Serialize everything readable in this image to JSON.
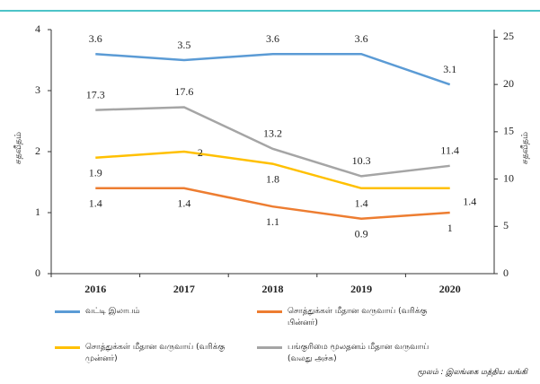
{
  "chart_data": {
    "type": "line",
    "categories": [
      "2016",
      "2017",
      "2018",
      "2019",
      "2020"
    ],
    "y_label": "சதவீதம்",
    "y2_label": "சதவீதம்",
    "ylim": [
      0,
      4
    ],
    "yticks": [
      0,
      1,
      2,
      3,
      4
    ],
    "y2lim": [
      0,
      25.8
    ],
    "y2ticks": [
      0,
      5,
      10,
      15,
      20,
      25
    ],
    "series": [
      {
        "name": "வட்டி இலாபம்",
        "color": "#5b9bd5",
        "values": [
          3.6,
          3.5,
          3.6,
          3.6,
          3.1
        ]
      },
      {
        "name": "சொத்துக்கள் மீதான வருவாய் (வரிக்கு பின்னர்)",
        "color": "#ed7d31",
        "values": [
          1.4,
          1.4,
          1.1,
          0.9,
          1.0
        ]
      },
      {
        "name": "சொத்துக்கள் மீதான வருவாய் (வரிக்கு முன்னர்)",
        "color": "#ffc000",
        "values": [
          1.9,
          2.0,
          1.8,
          1.4,
          1.4
        ]
      },
      {
        "name": "பங்குரிமை மூலதனம் மீதான வருவாய் (வலது அச்சு)",
        "color": "#a5a5a5",
        "axis": "y2",
        "values": [
          17.3,
          17.6,
          13.2,
          10.3,
          11.4
        ]
      }
    ],
    "source": "மூலம் : இலங்கை மத்திய வங்கி"
  }
}
